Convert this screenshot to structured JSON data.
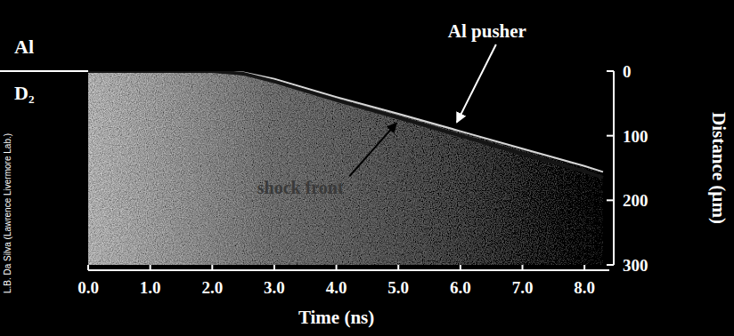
{
  "chart_data": {
    "type": "line",
    "x": [
      0,
      1,
      2,
      2.5,
      3,
      4,
      5,
      6,
      7,
      8,
      8.3
    ],
    "series": [
      {
        "color": "#d8d8d8",
        "values": [
          0,
          0,
          0,
          2,
          12,
          40,
          66,
          93,
          120,
          147,
          156
        ]
      },
      {
        "color": "#151515",
        "values": [
          0,
          0,
          0,
          4,
          16,
          45,
          72,
          100,
          128,
          155,
          165
        ]
      }
    ],
    "annotations": [
      "Al pusher",
      "shock front"
    ],
    "layers": [
      "Al",
      "D₂"
    ],
    "credit": "L.B. Da Silva (Lawrence Livermore Lab.)",
    "xlabel": "Time (ns)",
    "ylabel": "Distance (µm)",
    "xlim": [
      0,
      8.4
    ],
    "ylim": [
      0,
      300
    ],
    "xticks": [
      {
        "value": 0,
        "label": "0.0"
      },
      {
        "value": 1,
        "label": "1.0"
      },
      {
        "value": 2,
        "label": "2.0"
      },
      {
        "value": 3,
        "label": "3.0"
      },
      {
        "value": 4,
        "label": "4.0"
      },
      {
        "value": 5,
        "label": "5.0"
      },
      {
        "value": 6,
        "label": "6.0"
      },
      {
        "value": 7,
        "label": "7.0"
      },
      {
        "value": 8,
        "label": "8.0"
      }
    ],
    "yticks": [
      0,
      100,
      200,
      300
    ]
  }
}
